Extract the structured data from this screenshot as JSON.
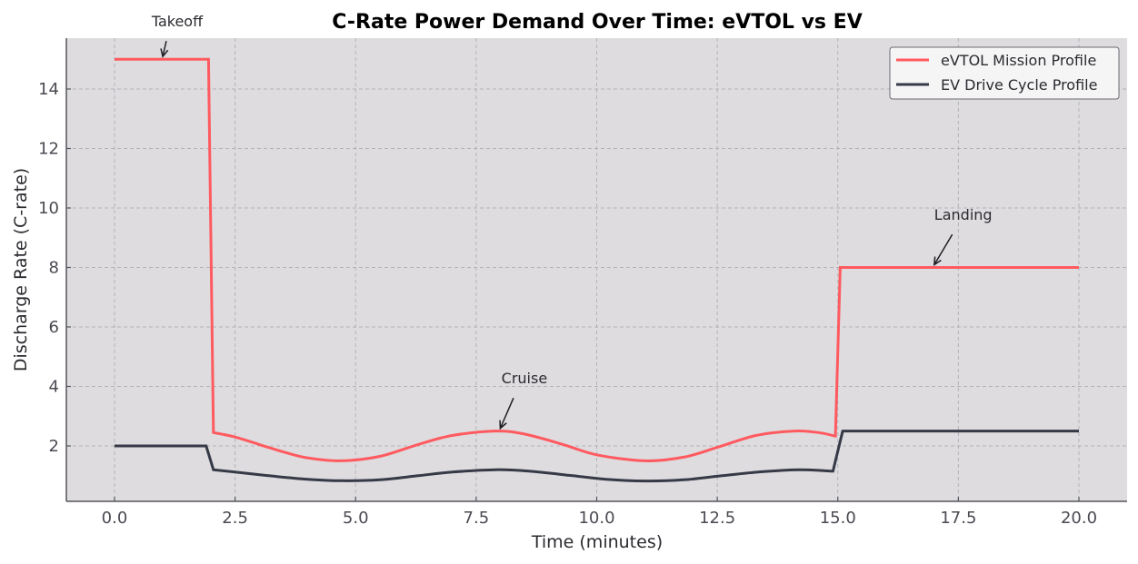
{
  "chart_data": {
    "type": "line",
    "title": "C-Rate Power Demand Over Time: eVTOL vs EV",
    "xlabel": "Time (minutes)",
    "ylabel": "Discharge Rate (C-rate)",
    "xlim": [
      -1.0,
      21.0
    ],
    "ylim": [
      0.1,
      15.6
    ],
    "xticks": [
      0.0,
      2.5,
      5.0,
      7.5,
      10.0,
      12.5,
      15.0,
      17.5,
      20.0
    ],
    "xtick_labels": [
      "0.0",
      "2.5",
      "5.0",
      "7.5",
      "10.0",
      "12.5",
      "15.0",
      "17.5",
      "20.0"
    ],
    "yticks": [
      2,
      4,
      6,
      8,
      10,
      12,
      14
    ],
    "ytick_labels": [
      "2",
      "4",
      "6",
      "8",
      "10",
      "12",
      "14"
    ],
    "grid": true,
    "legend_position": "upper right",
    "series": [
      {
        "name": "eVTOL Mission Profile",
        "color": "#ff5a5f",
        "x": [
          0.0,
          1.95,
          2.05,
          2.5,
          3.0,
          3.5,
          4.0,
          4.7,
          5.5,
          6.3,
          7.0,
          7.9,
          8.5,
          9.3,
          10.0,
          11.0,
          11.8,
          12.5,
          13.3,
          14.1,
          14.6,
          14.95,
          15.05,
          20.0
        ],
        "values": [
          15.0,
          15.0,
          2.45,
          2.3,
          2.05,
          1.8,
          1.6,
          1.5,
          1.65,
          2.05,
          2.35,
          2.5,
          2.4,
          2.05,
          1.7,
          1.5,
          1.62,
          1.95,
          2.35,
          2.5,
          2.45,
          2.33,
          8.0,
          8.0
        ]
      },
      {
        "name": "EV Drive Cycle Profile",
        "color": "#353a46",
        "x": [
          0.0,
          1.9,
          2.05,
          2.5,
          3.2,
          4.0,
          4.7,
          5.5,
          6.3,
          7.0,
          7.9,
          8.6,
          9.5,
          10.2,
          11.0,
          11.8,
          12.6,
          13.4,
          14.2,
          14.9,
          15.1,
          20.0
        ],
        "values": [
          2.0,
          2.0,
          1.2,
          1.12,
          1.0,
          0.88,
          0.83,
          0.86,
          1.0,
          1.12,
          1.2,
          1.15,
          1.0,
          0.88,
          0.82,
          0.86,
          1.0,
          1.13,
          1.2,
          1.15,
          2.5,
          2.5
        ]
      }
    ],
    "annotations": [
      {
        "text": "Takeoff",
        "xy": [
          1.0,
          15.0
        ],
        "xytext": [
          1.3,
          16.1
        ]
      },
      {
        "text": "Cruise",
        "xy": [
          8.0,
          2.5
        ],
        "xytext": [
          8.5,
          4.1
        ]
      },
      {
        "text": "Landing",
        "xy": [
          17.0,
          8.0
        ],
        "xytext": [
          17.6,
          9.6
        ]
      }
    ]
  },
  "colors": {
    "plot_background": "#dedcdf",
    "grid": "#b3b3b8",
    "axis": "#55555c",
    "evtol": "#ff5a5f",
    "ev": "#353a46"
  }
}
